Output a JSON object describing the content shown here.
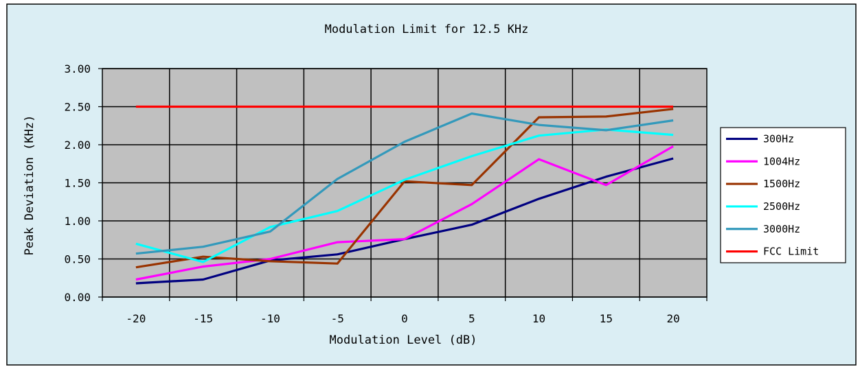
{
  "chart_data": {
    "type": "line",
    "title": "Modulation Limit for 12.5 KHz",
    "xlabel": "Modulation Level (dB)",
    "ylabel": "Peak Deviation (KHz)",
    "x": [
      -20,
      -15,
      -10,
      -5,
      0,
      5,
      10,
      15,
      20
    ],
    "x_tick_labels": [
      "-20",
      "-15",
      "-10",
      "-5",
      "0",
      "5",
      "10",
      "15",
      "20"
    ],
    "y_tick_labels": [
      "0.00",
      "0.50",
      "1.00",
      "1.50",
      "2.00",
      "2.50",
      "3.00"
    ],
    "ylim": [
      0,
      3
    ],
    "grid": true,
    "legend_position": "right",
    "series": [
      {
        "name": "300Hz",
        "color": "#000080",
        "values": [
          0.18,
          0.23,
          0.48,
          0.56,
          0.76,
          0.95,
          1.29,
          1.58,
          1.82
        ]
      },
      {
        "name": "1004Hz",
        "color": "#ff00ff",
        "values": [
          0.23,
          0.4,
          0.5,
          0.72,
          0.76,
          1.22,
          1.81,
          1.47,
          1.98
        ]
      },
      {
        "name": "1500Hz",
        "color": "#993300",
        "values": [
          0.39,
          0.53,
          0.47,
          0.44,
          1.52,
          1.47,
          2.36,
          2.37,
          2.47
        ]
      },
      {
        "name": "2500Hz",
        "color": "#00ffff",
        "values": [
          0.7,
          0.46,
          0.92,
          1.13,
          1.54,
          1.85,
          2.12,
          2.2,
          2.13
        ]
      },
      {
        "name": "3000Hz",
        "color": "#3399bb",
        "values": [
          0.57,
          0.66,
          0.86,
          1.55,
          2.04,
          2.41,
          2.26,
          2.19,
          2.32
        ]
      },
      {
        "name": "FCC Limit",
        "color": "#ff0000",
        "values": [
          2.5,
          2.5,
          2.5,
          2.5,
          2.5,
          2.5,
          2.5,
          2.5,
          2.5
        ]
      }
    ],
    "colors": {
      "chart_area": "#dbeef4",
      "plot_area": "#c0c0c0",
      "border": "#000000"
    }
  }
}
